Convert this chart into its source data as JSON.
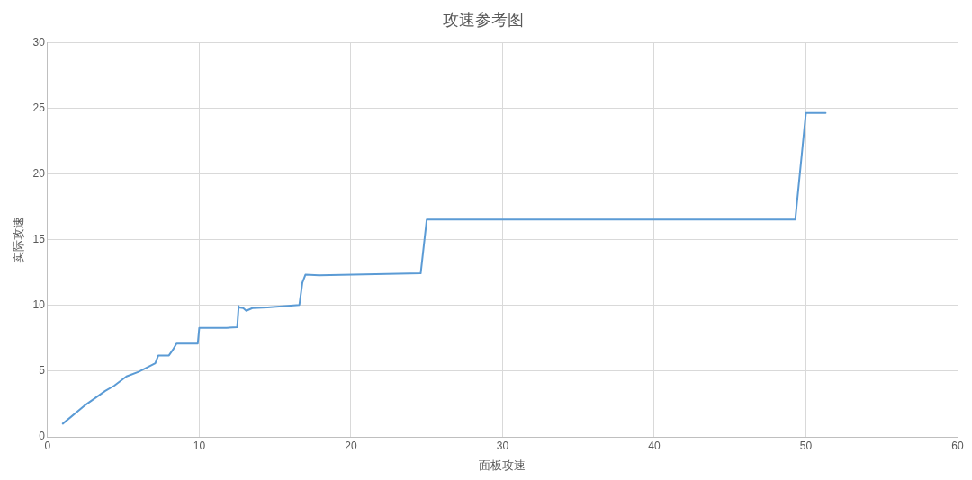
{
  "chart_data": {
    "type": "line",
    "title": "攻速参考图",
    "xlabel": "面板攻速",
    "ylabel": "实际攻速",
    "x": [
      1,
      2.4,
      3.8,
      4.4,
      5.2,
      6,
      7.1,
      7.3,
      8,
      8.3,
      8.5,
      9.9,
      10,
      11.8,
      12.5,
      12.6,
      12.6,
      12.9,
      13.1,
      13.5,
      14.5,
      16.6,
      16.8,
      17,
      17.9,
      24.6,
      25,
      49.3,
      50,
      51.3
    ],
    "series": [
      {
        "color": "#5b9bd5",
        "values": [
          1,
          2.35,
          3.5,
          3.9,
          4.6,
          4.95,
          5.6,
          6.2,
          6.2,
          6.7,
          7.1,
          7.1,
          8.3,
          8.3,
          8.35,
          9.95,
          9.85,
          9.8,
          9.6,
          9.8,
          9.85,
          10.05,
          11.75,
          12.35,
          12.3,
          12.45,
          16.55,
          16.55,
          24.65,
          24.65
        ]
      }
    ],
    "xlim": [
      0,
      60
    ],
    "xticks": [
      0,
      10,
      20,
      30,
      40,
      50,
      60
    ],
    "ylim": [
      0,
      30
    ],
    "yticks": [
      0,
      5,
      10,
      15,
      20,
      25,
      30
    ],
    "grid": true,
    "legend": false,
    "marker": "none",
    "line_style": "solid"
  }
}
